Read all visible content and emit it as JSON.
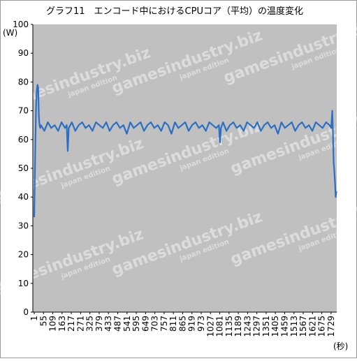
{
  "chart_data": {
    "type": "line",
    "title": "グラフ11　エンコード中におけるCPUコア（平均）の温度変化",
    "y_label": "(W)",
    "x_label": "(秒)",
    "color": "#2a6fc4",
    "xlim": [
      1,
      1762
    ],
    "ylim": [
      0,
      100
    ],
    "yticks": [
      0,
      10,
      20,
      30,
      40,
      50,
      60,
      70,
      80,
      90,
      100
    ],
    "xticks": [
      1,
      55,
      109,
      163,
      217,
      271,
      325,
      379,
      433,
      487,
      541,
      595,
      649,
      703,
      757,
      811,
      865,
      919,
      973,
      1027,
      1081,
      1135,
      1189,
      1243,
      1297,
      1351,
      1405,
      1459,
      1513,
      1567,
      1621,
      1675,
      1729
    ],
    "x": [
      1,
      4,
      8,
      12,
      16,
      20,
      24,
      28,
      32,
      36,
      40,
      60,
      80,
      100,
      120,
      140,
      160,
      180,
      190,
      196,
      202,
      220,
      240,
      260,
      280,
      300,
      320,
      340,
      360,
      380,
      400,
      420,
      440,
      460,
      480,
      500,
      520,
      540,
      560,
      580,
      600,
      620,
      640,
      660,
      680,
      700,
      720,
      740,
      760,
      780,
      800,
      820,
      840,
      860,
      880,
      900,
      920,
      940,
      960,
      980,
      1000,
      1020,
      1040,
      1060,
      1076,
      1082,
      1088,
      1100,
      1120,
      1140,
      1160,
      1180,
      1200,
      1220,
      1240,
      1260,
      1280,
      1300,
      1320,
      1340,
      1360,
      1380,
      1400,
      1420,
      1440,
      1460,
      1480,
      1500,
      1520,
      1540,
      1560,
      1580,
      1600,
      1620,
      1640,
      1660,
      1680,
      1700,
      1720,
      1730,
      1736,
      1740,
      1744,
      1748,
      1752,
      1756,
      1760
    ],
    "values": [
      33,
      45,
      60,
      72,
      77,
      79,
      78,
      68,
      65,
      64,
      65,
      63,
      66,
      64,
      65,
      63,
      66,
      64,
      65,
      56,
      64,
      66,
      63,
      65,
      66,
      64,
      65,
      63,
      66,
      65,
      64,
      66,
      63,
      65,
      66,
      64,
      65,
      62,
      66,
      64,
      65,
      66,
      63,
      65,
      66,
      64,
      65,
      63,
      66,
      65,
      62,
      66,
      64,
      65,
      66,
      63,
      65,
      66,
      64,
      65,
      63,
      66,
      65,
      64,
      65,
      59,
      64,
      66,
      63,
      65,
      66,
      64,
      65,
      63,
      66,
      65,
      64,
      66,
      63,
      65,
      66,
      64,
      65,
      62,
      66,
      64,
      65,
      66,
      63,
      65,
      66,
      64,
      65,
      63,
      66,
      65,
      64,
      66,
      65,
      64,
      70,
      62,
      52,
      49,
      45,
      40,
      42
    ]
  },
  "watermark": {
    "title": "gamesindustry.biz",
    "subtitle": "japan edition"
  }
}
